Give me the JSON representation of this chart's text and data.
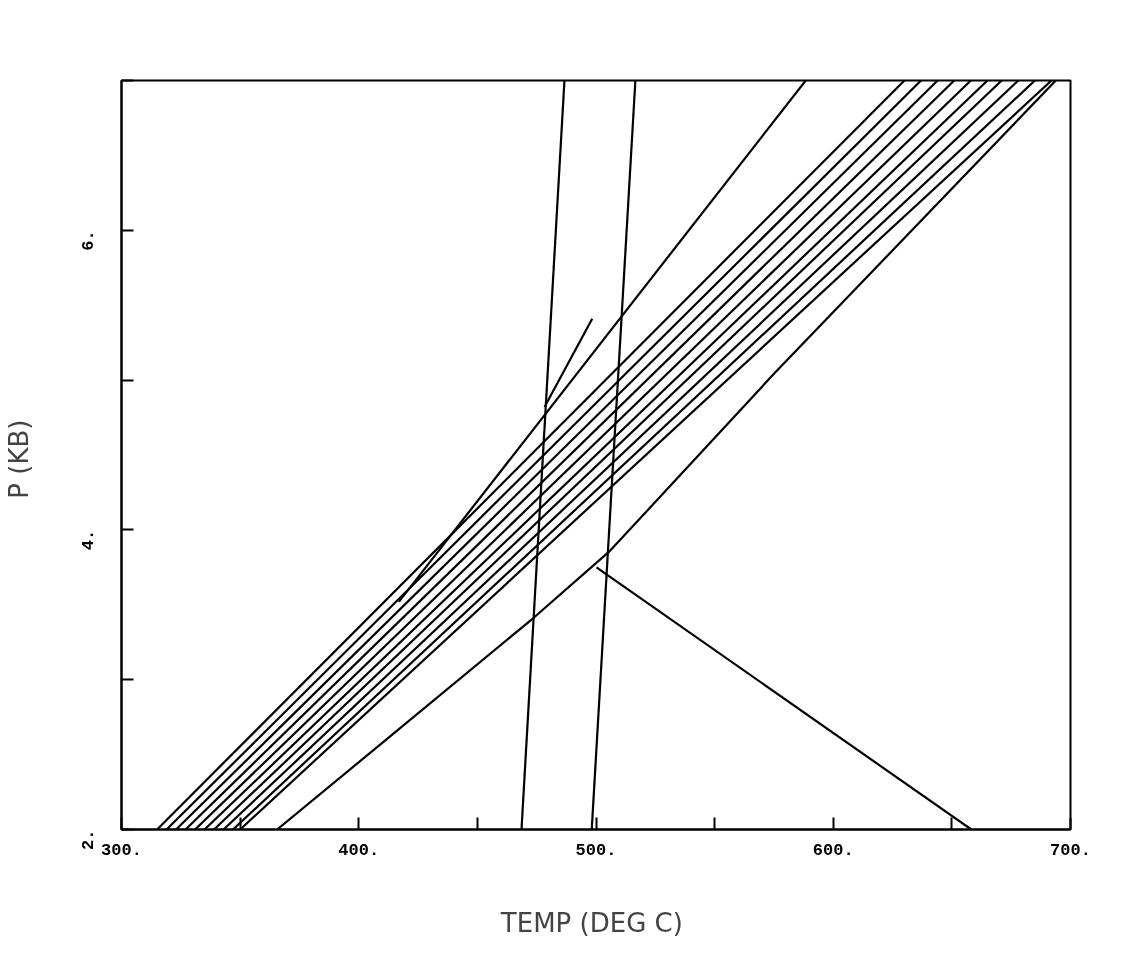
{
  "chart_data": {
    "type": "line",
    "xlabel": "TEMP  (DEG C)",
    "ylabel": "P  (KB)",
    "xlim": [
      300,
      700
    ],
    "ylim": [
      2,
      7
    ],
    "xticks": [
      {
        "value": 300,
        "label": "300."
      },
      {
        "value": 350,
        "label": null
      },
      {
        "value": 400,
        "label": "400."
      },
      {
        "value": 450,
        "label": null
      },
      {
        "value": 500,
        "label": "500."
      },
      {
        "value": 550,
        "label": null
      },
      {
        "value": 600,
        "label": "600."
      },
      {
        "value": 650,
        "label": null
      },
      {
        "value": 700,
        "label": "700."
      }
    ],
    "yticks": [
      {
        "value": 2,
        "label": "2."
      },
      {
        "value": 3,
        "label": null
      },
      {
        "value": 4,
        "label": "4."
      },
      {
        "value": 5,
        "label": null
      },
      {
        "value": 6,
        "label": "6."
      },
      {
        "value": 7,
        "label": null
      }
    ],
    "grid": false,
    "marker": "none",
    "line_style": "solid",
    "series": [
      {
        "color": "#000000",
        "x": [
          468.6,
          486.7
        ],
        "values": [
          2,
          7
        ]
      },
      {
        "color": "#000000",
        "x": [
          498.2,
          516.6
        ],
        "values": [
          2,
          7
        ]
      },
      {
        "color": "#000000",
        "x": [
          416.9,
          588.4
        ],
        "values": [
          3.52,
          7
        ]
      },
      {
        "color": "#000000",
        "x": [
          478.3,
          498.4
        ],
        "values": [
          4.82,
          5.41
        ]
      },
      {
        "color": "#000000",
        "x": [
          365.6,
          410.8,
          473.5,
          505.9,
          574.9,
          693.8
        ],
        "values": [
          2,
          2.59,
          3.41,
          3.86,
          5.04,
          7
        ]
      },
      {
        "color": "#000000",
        "x": [
          500.2,
          658.2
        ],
        "values": [
          3.75,
          2
        ]
      },
      {
        "color": "#000000",
        "x": [
          315,
          630
        ],
        "values": [
          2,
          7
        ]
      },
      {
        "color": "#000000",
        "x": [
          319,
          637
        ],
        "values": [
          2,
          7
        ]
      },
      {
        "color": "#000000",
        "x": [
          323,
          644
        ],
        "values": [
          2,
          7
        ]
      },
      {
        "color": "#000000",
        "x": [
          327,
          651
        ],
        "values": [
          2,
          7
        ]
      },
      {
        "color": "#000000",
        "x": [
          331,
          658
        ],
        "values": [
          2,
          7
        ]
      },
      {
        "color": "#000000",
        "x": [
          335,
          665
        ],
        "values": [
          2,
          7
        ]
      },
      {
        "color": "#000000",
        "x": [
          339,
          671
        ],
        "values": [
          2,
          7
        ]
      },
      {
        "color": "#000000",
        "x": [
          343,
          678
        ],
        "values": [
          2,
          7
        ]
      },
      {
        "color": "#000000",
        "x": [
          347,
          685
        ],
        "values": [
          2,
          7
        ]
      },
      {
        "color": "#000000",
        "x": [
          350,
          692
        ],
        "values": [
          2,
          7
        ]
      }
    ]
  }
}
